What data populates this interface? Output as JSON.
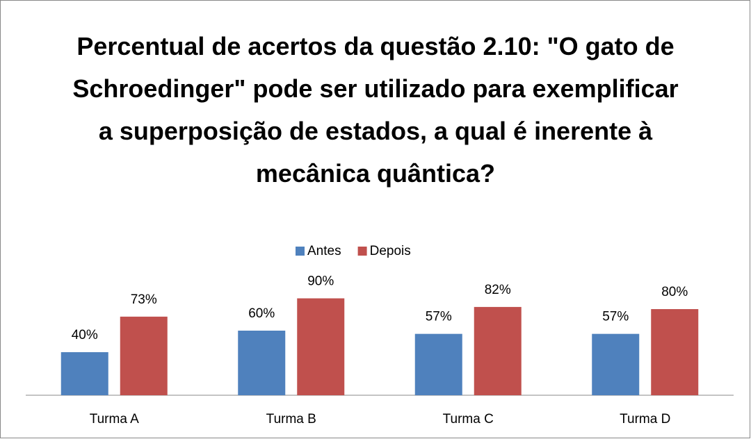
{
  "chart_data": {
    "type": "bar",
    "title": "Percentual de acertos da questão 2.10: \"O gato de Schroedinger\" pode ser utilizado para exemplificar a superposição de estados, a qual é inerente à mecânica quântica?",
    "categories": [
      "Turma A",
      "Turma B",
      "Turma C",
      "Turma D"
    ],
    "series": [
      {
        "name": "Antes",
        "color": "#4f81bd",
        "values": [
          40,
          60,
          57,
          57
        ],
        "value_labels": [
          "40%",
          "60%",
          "57%",
          "57%"
        ]
      },
      {
        "name": "Depois",
        "color": "#c0504d",
        "values": [
          73,
          90,
          82,
          80
        ],
        "value_labels": [
          "73%",
          "90%",
          "82%",
          "80%"
        ]
      }
    ],
    "ylim": [
      0,
      100
    ],
    "legend": "top"
  }
}
